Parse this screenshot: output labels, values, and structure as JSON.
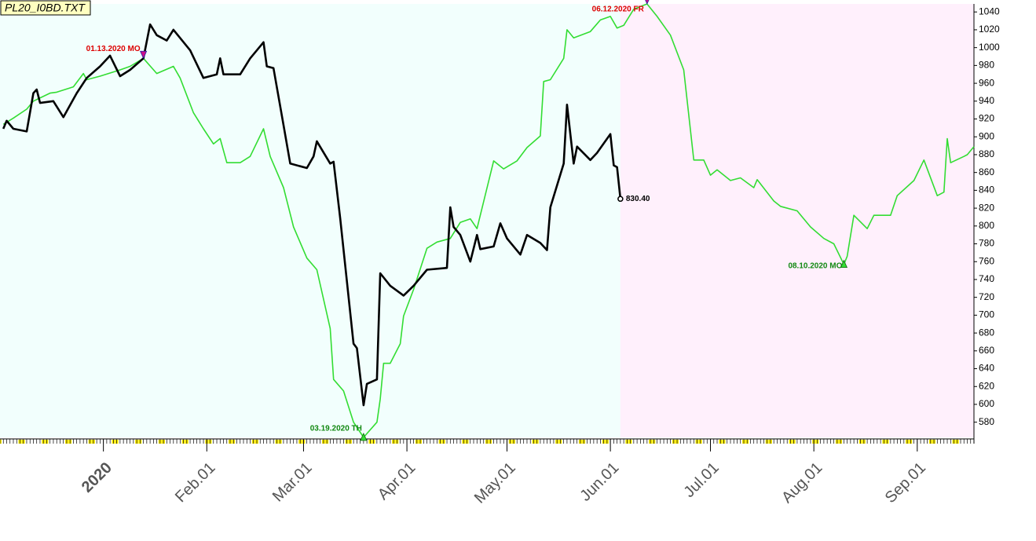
{
  "chart_data": {
    "type": "line",
    "title": "PL20_I0BD.TXT",
    "xlim": [
      "2019-12-01",
      "2020-09-18"
    ],
    "ylim": [
      563,
      1049
    ],
    "yticks": [
      580,
      600,
      620,
      640,
      660,
      680,
      700,
      720,
      740,
      760,
      780,
      800,
      820,
      840,
      860,
      880,
      900,
      920,
      940,
      960,
      980,
      1000,
      1020,
      1040
    ],
    "xticks": [
      {
        "value": "2020-01-01",
        "label": "2020"
      },
      {
        "value": "2020-02-01",
        "label": "Feb.01"
      },
      {
        "value": "2020-03-01",
        "label": "Mar.01"
      },
      {
        "value": "2020-04-01",
        "label": "Apr.01"
      },
      {
        "value": "2020-05-01",
        "label": "May.01"
      },
      {
        "value": "2020-06-01",
        "label": "Jun.01"
      },
      {
        "value": "2020-07-01",
        "label": "Jul.01"
      },
      {
        "value": "2020-08-01",
        "label": "Aug.01"
      },
      {
        "value": "2020-09-01",
        "label": "Sep.01"
      }
    ],
    "series": [
      {
        "color": "#000000",
        "x": [
          "2019-12-02",
          "2019-12-03",
          "2019-12-05",
          "2019-12-09",
          "2019-12-11",
          "2019-12-12",
          "2019-12-13",
          "2019-12-17",
          "2019-12-20",
          "2019-12-24",
          "2019-12-27",
          "2019-12-31",
          "2020-01-03",
          "2020-01-06",
          "2020-01-09",
          "2020-01-13",
          "2020-01-15",
          "2020-01-17",
          "2020-01-20",
          "2020-01-22",
          "2020-01-27",
          "2020-01-31",
          "2020-02-04",
          "2020-02-05",
          "2020-02-06",
          "2020-02-11",
          "2020-02-14",
          "2020-02-18",
          "2020-02-19",
          "2020-02-21",
          "2020-02-24",
          "2020-02-26",
          "2020-03-02",
          "2020-03-04",
          "2020-03-05",
          "2020-03-09",
          "2020-03-10",
          "2020-03-12",
          "2020-03-16",
          "2020-03-17",
          "2020-03-19",
          "2020-03-20",
          "2020-03-23",
          "2020-03-24",
          "2020-03-27",
          "2020-03-31",
          "2020-04-03",
          "2020-04-07",
          "2020-04-13",
          "2020-04-14",
          "2020-04-15",
          "2020-04-17",
          "2020-04-20",
          "2020-04-22",
          "2020-04-23",
          "2020-04-27",
          "2020-04-29",
          "2020-05-01",
          "2020-05-05",
          "2020-05-07",
          "2020-05-11",
          "2020-05-13",
          "2020-05-14",
          "2020-05-18",
          "2020-05-19",
          "2020-05-21",
          "2020-05-22",
          "2020-05-26",
          "2020-05-28",
          "2020-06-01",
          "2020-06-02",
          "2020-06-03",
          "2020-06-04"
        ],
        "values": [
          909,
          918,
          909,
          906,
          949,
          953,
          938,
          940,
          922,
          949,
          966,
          979,
          991,
          968,
          975,
          988,
          1026,
          1014,
          1008,
          1020,
          997,
          966,
          970,
          988,
          970,
          970,
          988,
          1006,
          979,
          977,
          913,
          870,
          865,
          878,
          895,
          870,
          872,
          808,
          668,
          663,
          599,
          623,
          628,
          747,
          733,
          722,
          733,
          751,
          753,
          821,
          799,
          790,
          760,
          790,
          774,
          777,
          803,
          786,
          768,
          790,
          781,
          773,
          821,
          870,
          936,
          870,
          889,
          874,
          882,
          903,
          868,
          866,
          830.4
        ]
      },
      {
        "color": "#33dd33",
        "x": [
          "2019-12-02",
          "2019-12-05",
          "2019-12-09",
          "2019-12-11",
          "2019-12-16",
          "2019-12-18",
          "2019-12-23",
          "2019-12-26",
          "2019-12-27",
          "2019-12-31",
          "2020-01-06",
          "2020-01-09",
          "2020-01-13",
          "2020-01-17",
          "2020-01-22",
          "2020-01-24",
          "2020-01-28",
          "2020-01-31",
          "2020-02-03",
          "2020-02-05",
          "2020-02-07",
          "2020-02-11",
          "2020-02-14",
          "2020-02-18",
          "2020-02-20",
          "2020-02-24",
          "2020-02-27",
          "2020-03-02",
          "2020-03-05",
          "2020-03-09",
          "2020-03-10",
          "2020-03-13",
          "2020-03-16",
          "2020-03-19",
          "2020-03-23",
          "2020-03-24",
          "2020-03-25",
          "2020-03-27",
          "2020-03-30",
          "2020-03-31",
          "2020-04-03",
          "2020-04-07",
          "2020-04-10",
          "2020-04-14",
          "2020-04-17",
          "2020-04-20",
          "2020-04-22",
          "2020-04-27",
          "2020-04-30",
          "2020-05-04",
          "2020-05-07",
          "2020-05-11",
          "2020-05-12",
          "2020-05-14",
          "2020-05-18",
          "2020-05-19",
          "2020-05-21",
          "2020-05-26",
          "2020-05-29",
          "2020-06-01",
          "2020-06-03",
          "2020-06-05",
          "2020-06-08",
          "2020-06-12",
          "2020-06-15",
          "2020-06-19",
          "2020-06-23",
          "2020-06-26",
          "2020-06-29",
          "2020-07-01",
          "2020-07-03",
          "2020-07-07",
          "2020-07-10",
          "2020-07-14",
          "2020-07-15",
          "2020-07-20",
          "2020-07-22",
          "2020-07-27",
          "2020-07-31",
          "2020-08-04",
          "2020-08-07",
          "2020-08-10",
          "2020-08-11",
          "2020-08-13",
          "2020-08-17",
          "2020-08-19",
          "2020-08-24",
          "2020-08-26",
          "2020-08-31",
          "2020-09-03",
          "2020-09-07",
          "2020-09-09",
          "2020-09-10",
          "2020-09-11",
          "2020-09-15",
          "2020-09-16",
          "2020-09-18"
        ],
        "values": [
          914,
          921,
          931,
          940,
          949,
          950,
          956,
          971,
          964,
          968,
          975,
          979,
          988,
          971,
          979,
          966,
          927,
          909,
          892,
          898,
          871,
          871,
          878,
          909,
          878,
          843,
          799,
          764,
          751,
          685,
          628,
          615,
          580,
          563,
          580,
          606,
          646,
          646,
          668,
          699,
          729,
          775,
          782,
          786,
          804,
          808,
          797,
          873,
          864,
          873,
          888,
          901,
          962,
          964,
          988,
          1020,
          1011,
          1018,
          1031,
          1035,
          1022,
          1025,
          1043,
          1049,
          1035,
          1014,
          975,
          874,
          874,
          857,
          863,
          851,
          854,
          843,
          852,
          828,
          822,
          817,
          799,
          786,
          780,
          757,
          766,
          812,
          797,
          812,
          812,
          834,
          851,
          874,
          834,
          838,
          898,
          871,
          878,
          880,
          889
        ]
      }
    ],
    "annotations": [
      {
        "text": "01.13.2020 MO",
        "x": "2020-01-13",
        "y": 988,
        "color": "#dd0000",
        "marker": "down"
      },
      {
        "text": "03.19.2020 TH",
        "x": "2020-03-19",
        "y": 563,
        "color": "#118811",
        "marker": "up"
      },
      {
        "text": "06.12.2020 FR",
        "x": "2020-06-12",
        "y": 1049,
        "color": "#dd0000",
        "marker": "down"
      },
      {
        "text": "08.10.2020 MO",
        "x": "2020-08-10",
        "y": 757,
        "color": "#118811",
        "marker": "up"
      },
      {
        "text": "830.40",
        "x": "2020-06-04",
        "y": 830.4,
        "color": "#000000",
        "marker": "circle"
      }
    ]
  }
}
